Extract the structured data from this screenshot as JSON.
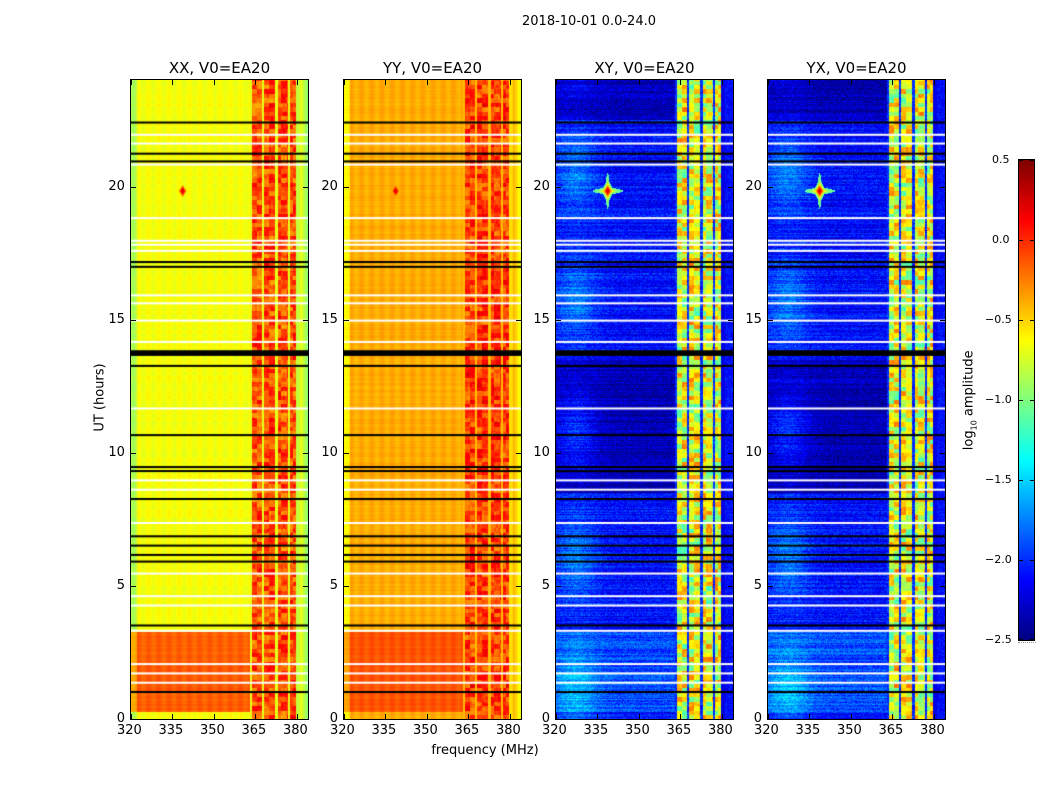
{
  "chart_data": {
    "type": "heatmap",
    "title": "2018-10-01 0.0-24.0",
    "xlabel": "frequency (MHz)",
    "ylabel": "UT (hours)",
    "xlim": [
      320,
      384
    ],
    "ylim": [
      0,
      24
    ],
    "xticks": [
      "320",
      "335",
      "350",
      "365",
      "380"
    ],
    "yticks": [
      "0",
      "5",
      "10",
      "15",
      "20"
    ],
    "colorbar": {
      "label_main": "log",
      "label_sub": "10",
      "label_rest": " amplitude",
      "clim": [
        -2.5,
        0.5
      ],
      "ticks": [
        "0.5",
        "0.0",
        "−0.5",
        "−1.0",
        "−1.5",
        "−2.0",
        "−2.5"
      ],
      "tick_values": [
        0.5,
        0.0,
        -0.5,
        -1.0,
        -1.5,
        -2.0,
        -2.5
      ],
      "colormap": "jet"
    },
    "panels": [
      {
        "title": "XX, V0=EA20",
        "base_level": -0.65,
        "early_level": -0.15,
        "rfi_level": -0.1,
        "kind": "parallel"
      },
      {
        "title": "YY, V0=EA20",
        "base_level": -0.38,
        "early_level": -0.12,
        "rfi_level": -0.05,
        "kind": "parallel"
      },
      {
        "title": "XY, V0=EA20",
        "base_level": -2.1,
        "early_level": -1.9,
        "rfi_level": -0.7,
        "kind": "cross"
      },
      {
        "title": "YX, V0=EA20",
        "base_level": -2.1,
        "early_level": -1.9,
        "rfi_level": -0.7,
        "kind": "cross"
      }
    ],
    "rfi_band_mhz": [
      363,
      381
    ],
    "rfi_gaps_mhz": [
      367.5,
      372.5,
      377
    ],
    "early_period_hours": [
      0.3,
      3.3
    ],
    "source": {
      "freq_mhz": 338.5,
      "ut_hours": 19.85,
      "peak": 0.45
    },
    "flagged_black_hours": [
      22.44,
      21.27,
      20.98,
      17.2,
      17.02,
      13.85,
      13.75,
      13.3,
      10.7,
      9.5,
      9.35,
      8.3,
      6.9,
      6.55,
      6.2,
      5.95,
      3.55,
      1.05
    ],
    "flagged_white_hours": [
      21.98,
      21.65,
      20.86,
      18.85,
      18.0,
      17.85,
      17.62,
      15.95,
      15.65,
      15.0,
      14.2,
      11.7,
      9.0,
      8.65,
      7.4,
      5.5,
      4.65,
      4.3,
      3.35,
      2.1,
      1.75,
      1.4
    ]
  }
}
